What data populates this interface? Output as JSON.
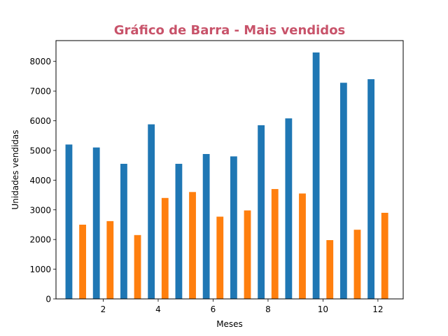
{
  "chart_data": {
    "type": "bar",
    "title": "Gráfico de Barra - Mais vendidos",
    "title_color": "#c8536a",
    "xlabel": "Meses",
    "ylabel": "Unidades vendidas",
    "xlim": [
      0.28,
      12.92
    ],
    "ylim": [
      0,
      8700
    ],
    "x_ticks": [
      2,
      4,
      6,
      8,
      10,
      12
    ],
    "y_ticks": [
      0,
      1000,
      2000,
      3000,
      4000,
      5000,
      6000,
      7000,
      8000
    ],
    "grid": false,
    "legend": "none",
    "series": [
      {
        "color": "#1f77b4",
        "x": [
          0.75,
          1.75,
          2.75,
          3.75,
          4.75,
          5.75,
          6.75,
          7.75,
          8.75,
          9.75,
          10.75,
          11.75
        ],
        "values": [
          5200,
          5100,
          4550,
          5880,
          4550,
          4880,
          4800,
          5850,
          6080,
          8300,
          7280,
          7400
        ]
      },
      {
        "color": "#ff7f0e",
        "x": [
          1.25,
          2.25,
          3.25,
          4.25,
          5.25,
          6.25,
          7.25,
          8.25,
          9.25,
          10.25,
          11.25,
          12.25
        ],
        "values": [
          2500,
          2620,
          2150,
          3400,
          3600,
          2770,
          2980,
          3700,
          3550,
          1980,
          2330,
          2900
        ]
      }
    ],
    "bar_width": 0.25
  }
}
